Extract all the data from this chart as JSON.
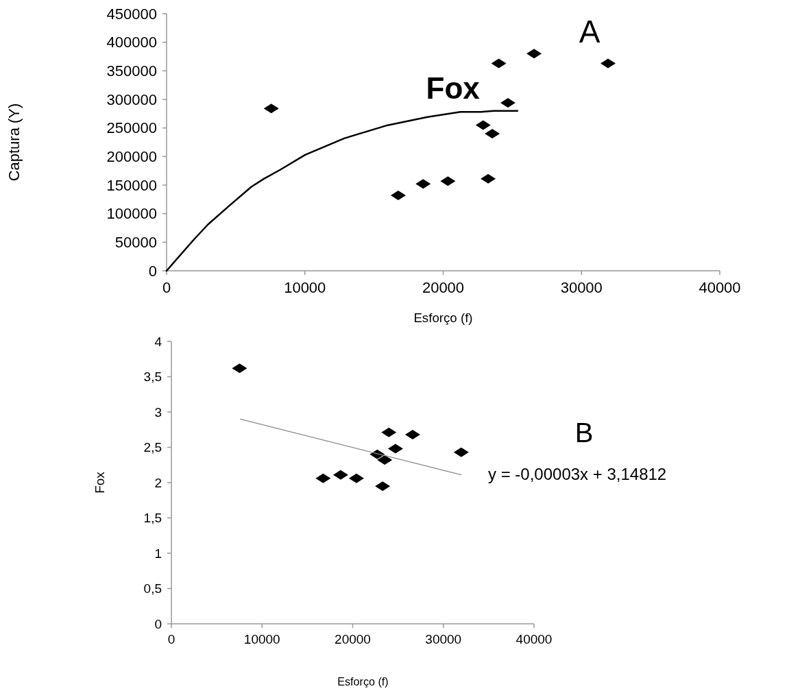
{
  "chart_data": [
    {
      "type": "scatter",
      "xlabel": "Esforço (f)",
      "ylabel": "Captura (Y)",
      "annotations": [
        "A"
      ],
      "xlim": [
        0,
        40000
      ],
      "ylim": [
        0,
        450000
      ],
      "xticks": [
        0,
        10000,
        20000,
        30000,
        40000
      ],
      "yticks": [
        0,
        50000,
        100000,
        150000,
        200000,
        250000,
        300000,
        350000,
        400000,
        450000
      ],
      "grid": false,
      "marker": "diamond",
      "series": [
        {
          "color": "#000000",
          "x": [
            7570,
            16750,
            18550,
            20340,
            23250,
            22890,
            23550,
            24680,
            24020,
            26570,
            31920
          ],
          "values": [
            284000,
            132000,
            152000,
            157000,
            161000,
            255000,
            240000,
            294000,
            363000,
            380000,
            363000
          ]
        },
        {
          "type": "line",
          "name": "Fox",
          "color": "#000000",
          "marker": "none",
          "x": [
            0,
            1950,
            2990,
            4490,
            6130,
            7030,
            8230,
            10020,
            12870,
            15860,
            18850,
            21240,
            22740,
            23640,
            25370
          ],
          "values": [
            0,
            54000,
            81000,
            113000,
            147000,
            161000,
            177000,
            203000,
            232000,
            254000,
            269000,
            278000,
            278000,
            280000,
            280000
          ]
        }
      ]
    },
    {
      "type": "scatter",
      "xlabel": "Esforço (f)",
      "ylabel": "Fox",
      "annotations": [
        "B",
        "y = -0,00003x + 3,14812"
      ],
      "xlim": [
        0,
        40000
      ],
      "ylim": [
        0,
        4
      ],
      "xticks": [
        0,
        10000,
        20000,
        30000,
        40000
      ],
      "yticks": [
        0,
        {
          "value": 0.5,
          "label": "0,5"
        },
        1,
        {
          "value": 1.5,
          "label": "1,5"
        },
        2,
        {
          "value": 2.5,
          "label": "2,5"
        },
        3,
        {
          "value": 3.5,
          "label": "3,5"
        },
        4
      ],
      "grid": false,
      "marker": "diamond",
      "series": [
        {
          "color": "#000000",
          "x": [
            7520,
            16740,
            18670,
            20410,
            23300,
            22710,
            23530,
            24720,
            23990,
            26610,
            31970
          ],
          "values": [
            3.62,
            2.06,
            2.11,
            2.06,
            1.95,
            2.4,
            2.32,
            2.48,
            2.71,
            2.68,
            2.43
          ]
        },
        {
          "type": "line",
          "color": "#888888",
          "marker": "none",
          "x": [
            7610,
            31970
          ],
          "values": [
            2.9,
            2.11
          ]
        }
      ]
    }
  ]
}
